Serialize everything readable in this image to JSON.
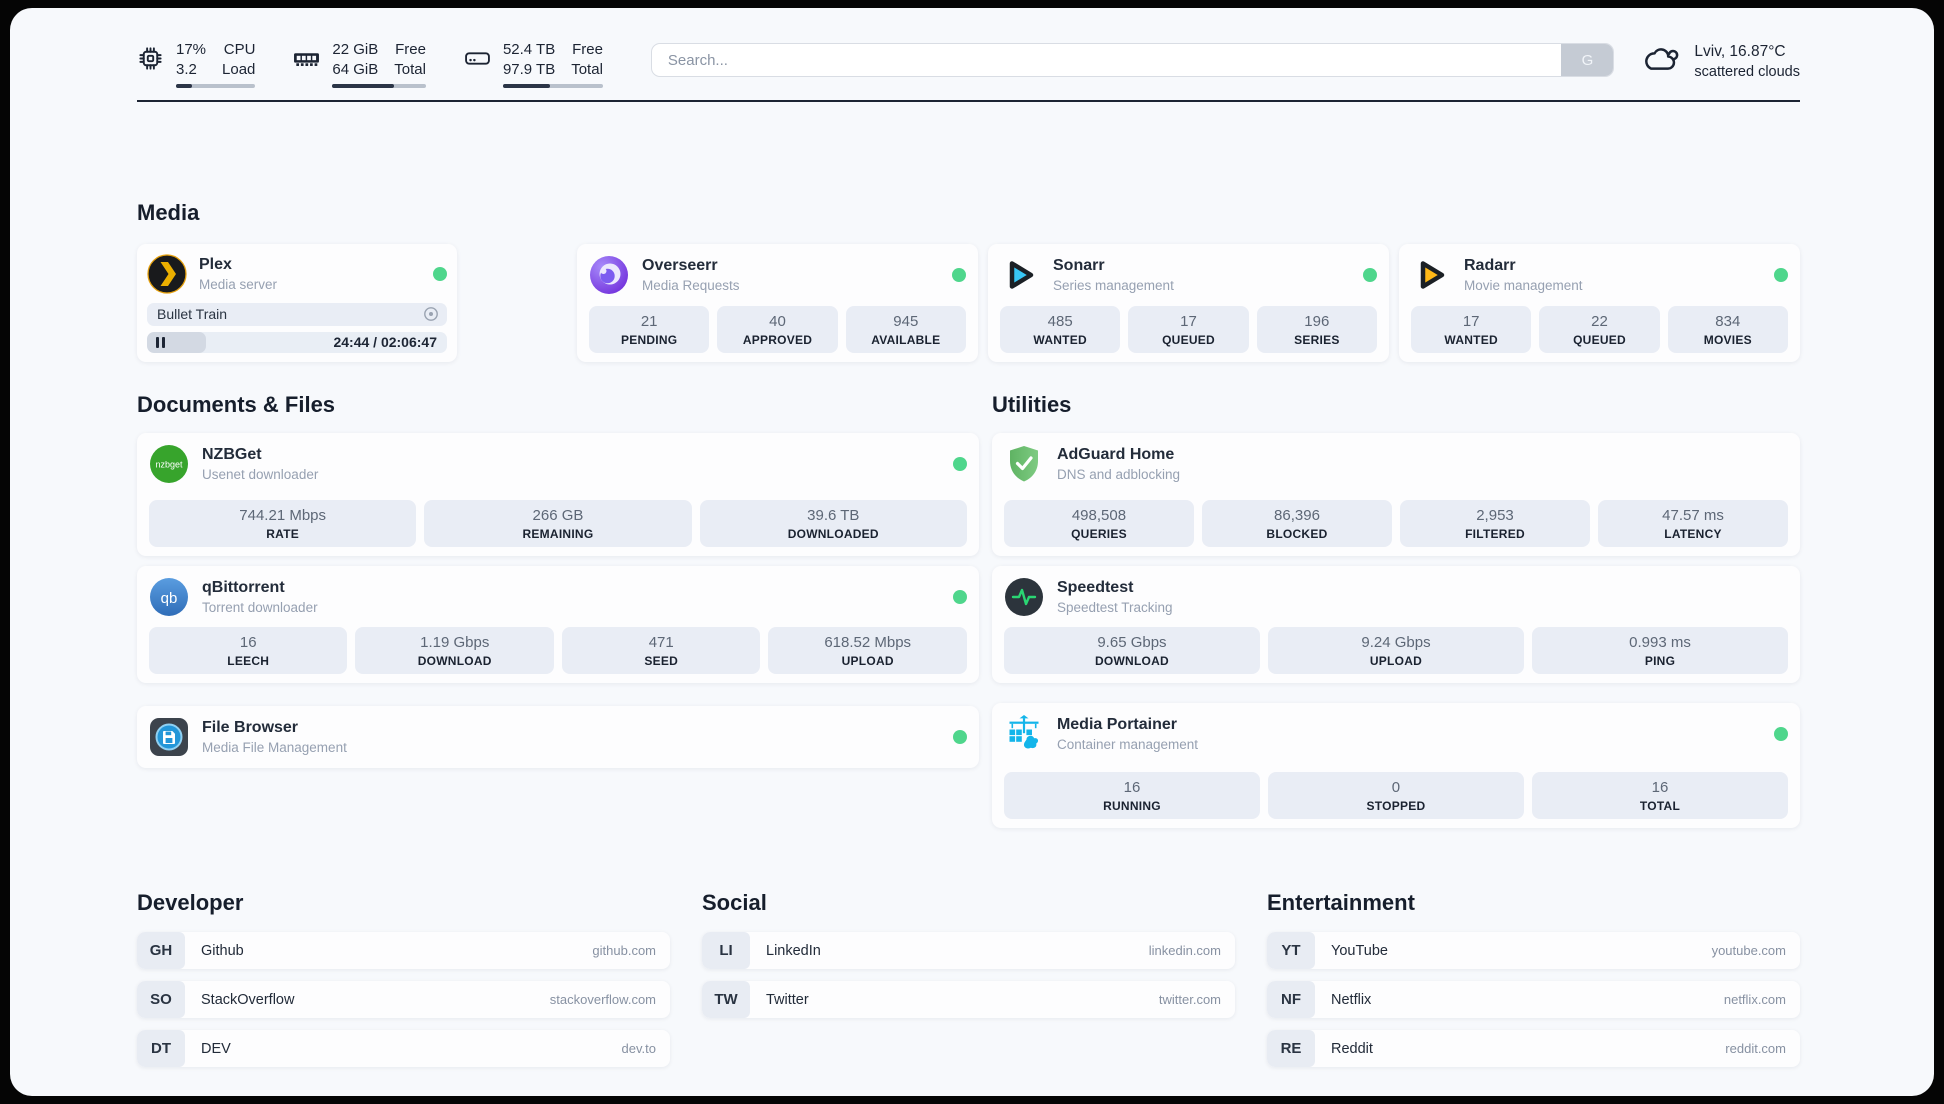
{
  "colors": {
    "status_green": "#4fd68c",
    "plex_amber": "#ebaf00",
    "sonarr_cyan": "#38c6f4",
    "radarr_amber": "#ffb917",
    "nzbget_green": "#37a42c",
    "qbittorrent_blue": "#3f7fc6",
    "adguard_green": "#68bc71",
    "speedtest_green": "#2ad673",
    "portainer_blue": "#13b5ea",
    "bar_fill": "#2b3547"
  },
  "topbar": {
    "cpu": {
      "value_top": "17%",
      "value_bottom": "3.2",
      "label_top": "CPU",
      "label_bottom": "Load",
      "progress_pct": "20%"
    },
    "memory": {
      "value_top": "22 GiB",
      "value_bottom": "64 GiB",
      "label_top": "Free",
      "label_bottom": "Total",
      "progress_pct": "66%"
    },
    "disk": {
      "value_top": "52.4 TB",
      "value_bottom": "97.9 TB",
      "label_top": "Free",
      "label_bottom": "Total",
      "progress_pct": "47%"
    },
    "search": {
      "placeholder": "Search...",
      "button_label": "G"
    },
    "weather": {
      "location_temp": "Lviv, 16.87°C",
      "condition": "scattered clouds"
    }
  },
  "media": {
    "heading": "Media",
    "plex": {
      "name": "Plex",
      "desc": "Media server",
      "now_playing": "Bullet Train",
      "time": "24:44 / 02:06:47",
      "progress_pct": "19.5%"
    },
    "overseerr": {
      "name": "Overseerr",
      "desc": "Media Requests",
      "stats": [
        {
          "value": "21",
          "label": "PENDING"
        },
        {
          "value": "40",
          "label": "APPROVED"
        },
        {
          "value": "945",
          "label": "AVAILABLE"
        }
      ]
    },
    "sonarr": {
      "name": "Sonarr",
      "desc": "Series management",
      "stats": [
        {
          "value": "485",
          "label": "WANTED"
        },
        {
          "value": "17",
          "label": "QUEUED"
        },
        {
          "value": "196",
          "label": "SERIES"
        }
      ]
    },
    "radarr": {
      "name": "Radarr",
      "desc": "Movie management",
      "stats": [
        {
          "value": "17",
          "label": "WANTED"
        },
        {
          "value": "22",
          "label": "QUEUED"
        },
        {
          "value": "834",
          "label": "MOVIES"
        }
      ]
    }
  },
  "documents": {
    "heading": "Documents & Files",
    "nzbget": {
      "name": "NZBGet",
      "desc": "Usenet downloader",
      "icon_text": "nzbget",
      "stats": [
        {
          "value": "744.21 Mbps",
          "label": "RATE"
        },
        {
          "value": "266 GB",
          "label": "REMAINING"
        },
        {
          "value": "39.6 TB",
          "label": "DOWNLOADED"
        }
      ]
    },
    "qbittorrent": {
      "name": "qBittorrent",
      "desc": "Torrent downloader",
      "icon_text": "qb",
      "stats": [
        {
          "value": "16",
          "label": "LEECH"
        },
        {
          "value": "1.19 Gbps",
          "label": "DOWNLOAD"
        },
        {
          "value": "471",
          "label": "SEED"
        },
        {
          "value": "618.52 Mbps",
          "label": "UPLOAD"
        }
      ]
    },
    "filebrowser": {
      "name": "File Browser",
      "desc": "Media File Management"
    }
  },
  "utilities": {
    "heading": "Utilities",
    "adguard": {
      "name": "AdGuard Home",
      "desc": "DNS and adblocking",
      "stats": [
        {
          "value": "498,508",
          "label": "QUERIES"
        },
        {
          "value": "86,396",
          "label": "BLOCKED"
        },
        {
          "value": "2,953",
          "label": "FILTERED"
        },
        {
          "value": "47.57 ms",
          "label": "LATENCY"
        }
      ]
    },
    "speedtest": {
      "name": "Speedtest",
      "desc": "Speedtest Tracking",
      "stats": [
        {
          "value": "9.65 Gbps",
          "label": "DOWNLOAD"
        },
        {
          "value": "9.24 Gbps",
          "label": "UPLOAD"
        },
        {
          "value": "0.993 ms",
          "label": "PING"
        }
      ]
    },
    "portainer": {
      "name": "Media Portainer",
      "desc": "Container management",
      "stats": [
        {
          "value": "16",
          "label": "RUNNING"
        },
        {
          "value": "0",
          "label": "STOPPED"
        },
        {
          "value": "16",
          "label": "TOTAL"
        }
      ]
    }
  },
  "links": {
    "developer": {
      "heading": "Developer",
      "items": [
        {
          "abbr": "GH",
          "name": "Github",
          "url": "github.com"
        },
        {
          "abbr": "SO",
          "name": "StackOverflow",
          "url": "stackoverflow.com"
        },
        {
          "abbr": "DT",
          "name": "DEV",
          "url": "dev.to"
        }
      ]
    },
    "social": {
      "heading": "Social",
      "items": [
        {
          "abbr": "LI",
          "name": "LinkedIn",
          "url": "linkedin.com"
        },
        {
          "abbr": "TW",
          "name": "Twitter",
          "url": "twitter.com"
        }
      ]
    },
    "entertainment": {
      "heading": "Entertainment",
      "items": [
        {
          "abbr": "YT",
          "name": "YouTube",
          "url": "youtube.com"
        },
        {
          "abbr": "NF",
          "name": "Netflix",
          "url": "netflix.com"
        },
        {
          "abbr": "RE",
          "name": "Reddit",
          "url": "reddit.com"
        }
      ]
    }
  }
}
